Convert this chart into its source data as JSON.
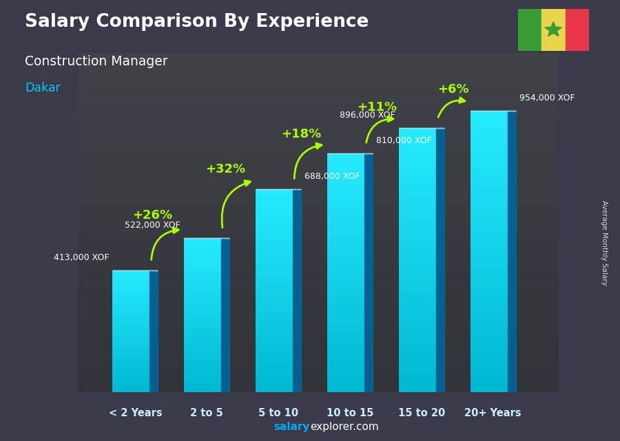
{
  "title": "Salary Comparison By Experience",
  "subtitle": "Construction Manager",
  "city": "Dakar",
  "categories": [
    "< 2 Years",
    "2 to 5",
    "5 to 10",
    "10 to 15",
    "15 to 20",
    "20+ Years"
  ],
  "values": [
    413000,
    522000,
    688000,
    810000,
    896000,
    954000
  ],
  "labels": [
    "413,000 XOF",
    "522,000 XOF",
    "688,000 XOF",
    "810,000 XOF",
    "896,000 XOF",
    "954,000 XOF"
  ],
  "pct_changes": [
    null,
    "+26%",
    "+32%",
    "+18%",
    "+11%",
    "+6%"
  ],
  "title_color": "#ffffff",
  "subtitle_color": "#ffffff",
  "city_color": "#00ccff",
  "label_color": "#ffffff",
  "pct_color": "#aaff00",
  "xlabel_color": "#cceeff",
  "footer_salary_color": "#00aaff",
  "footer_explorer_color": "#ffffff",
  "ylabel_text": "Average Monthly Salary",
  "bar_width": 0.52,
  "ylim_max": 1150000,
  "bg_color": "#3a3a4a",
  "bar_front_color_bottom": "#0099cc",
  "bar_front_color_top": "#00ddff",
  "bar_side_color": "#006699",
  "bar_top_color": "#aaddee",
  "flag_green": "#3a9c35",
  "flag_yellow": "#e8d44d",
  "flag_red": "#e8374a",
  "flag_star": "#3a9c35"
}
